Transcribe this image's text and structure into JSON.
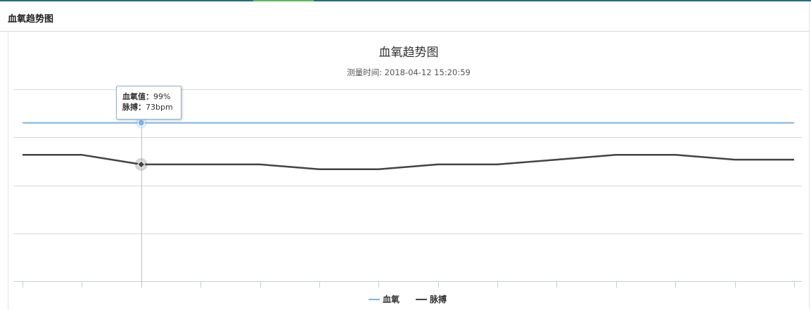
{
  "panel": {
    "title": "血氧趋势图"
  },
  "tooltip": {
    "spo2_label": "血氧值：",
    "spo2_value": "99%",
    "pulse_label": "脉搏：",
    "pulse_value": "73bpm"
  },
  "colors": {
    "spo2": "#7cb5ec",
    "pulse": "#434348",
    "grid": "#d8d8d8",
    "axis": "#c0d0e0"
  },
  "chart_data": {
    "type": "line",
    "title": "血氧趋势图",
    "subtitle": "测量时间: 2018-04-12 15:20:59",
    "categories": [
      "",
      "",
      "",
      "",
      "",
      "",
      "",
      "",
      "",
      "",
      "",
      "",
      "",
      ""
    ],
    "ylim": [
      0,
      120
    ],
    "y_ticks": [
      0,
      30,
      60,
      90,
      120
    ],
    "grid": true,
    "legend_position": "bottom-center",
    "highlight_index": 2,
    "series": [
      {
        "name": "血氧",
        "values": [
          99,
          99,
          99,
          99,
          99,
          99,
          99,
          99,
          99,
          99,
          99,
          99,
          99,
          99
        ]
      },
      {
        "name": "脉搏",
        "values": [
          79,
          79,
          73,
          73,
          73,
          70,
          70,
          73,
          73,
          76,
          79,
          79,
          76,
          76
        ]
      }
    ]
  }
}
